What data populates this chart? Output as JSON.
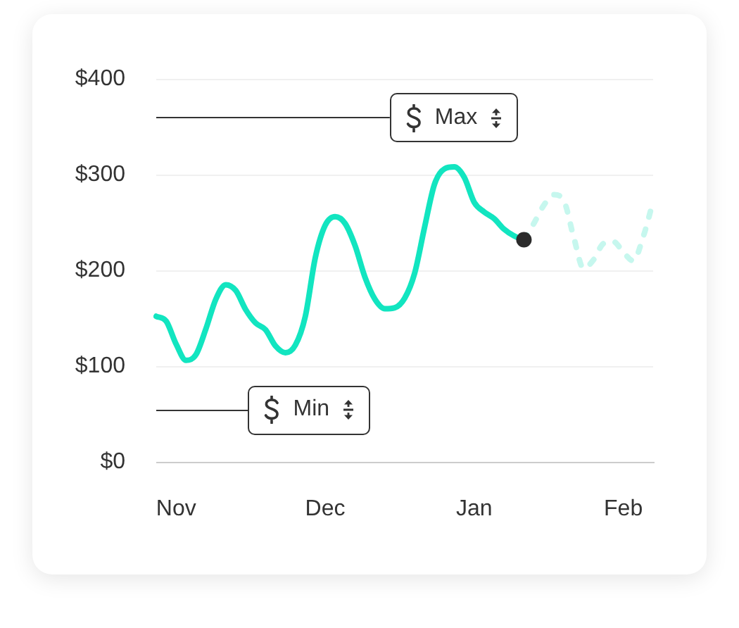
{
  "chart_data": {
    "type": "line",
    "categories": [
      null,
      null,
      "Nov",
      null,
      null,
      null,
      null,
      null,
      null,
      null,
      null,
      null,
      null,
      null,
      null,
      null,
      null,
      "Dec",
      null,
      null,
      null,
      null,
      null,
      null,
      null,
      null,
      null,
      null,
      null,
      null,
      null,
      null,
      "Jan",
      null,
      null,
      null,
      null,
      null,
      null,
      null,
      null,
      null,
      null,
      null,
      null,
      null,
      null,
      "Feb",
      null,
      null,
      null
    ],
    "ylim": [
      0,
      400
    ],
    "yticks": [
      {
        "value": 0,
        "label": "$0"
      },
      {
        "value": 100,
        "label": "$100"
      },
      {
        "value": 200,
        "label": "$200"
      },
      {
        "value": 300,
        "label": "$300"
      },
      {
        "value": 400,
        "label": "$400"
      }
    ],
    "grid": "y",
    "legend": false,
    "marker": "none",
    "line_style": "solid",
    "series": [
      {
        "color": "#12e5c0",
        "values": [
          152,
          147,
          123,
          106,
          112,
          139,
          170,
          185,
          179,
          159,
          145,
          138,
          121,
          114,
          122,
          152,
          213,
          247,
          256,
          249,
          226,
          193,
          170,
          160,
          161,
          171,
          197,
          245,
          290,
          306,
          308,
          297,
          271,
          261,
          254,
          243,
          236,
          232,
          null,
          null,
          null,
          null,
          null,
          null,
          null,
          null,
          null,
          null,
          null,
          null,
          null
        ]
      },
      {
        "color": "#c6f7ee",
        "line_style": "dashed",
        "values": [
          null,
          null,
          null,
          null,
          null,
          null,
          null,
          null,
          null,
          null,
          null,
          null,
          null,
          null,
          null,
          null,
          null,
          null,
          null,
          null,
          null,
          null,
          null,
          null,
          null,
          null,
          null,
          null,
          null,
          null,
          null,
          null,
          null,
          null,
          null,
          null,
          null,
          232,
          249,
          268,
          279,
          273,
          235,
          202,
          211,
          228,
          230,
          219,
          210,
          235,
          272
        ]
      },
      {
        "type": "scatter",
        "marker": "circle",
        "color": "#2b2b2b",
        "values": [
          null,
          null,
          null,
          null,
          null,
          null,
          null,
          null,
          null,
          null,
          null,
          null,
          null,
          null,
          null,
          null,
          null,
          null,
          null,
          null,
          null,
          null,
          null,
          null,
          null,
          null,
          null,
          null,
          null,
          null,
          null,
          null,
          null,
          null,
          null,
          null,
          null,
          232,
          null,
          null,
          null,
          null,
          null,
          null,
          null,
          null,
          null,
          null,
          null,
          null,
          null
        ]
      }
    ],
    "ref_lines": [
      {
        "axis": "y",
        "value": 360,
        "label": "Max",
        "color": "#333333"
      },
      {
        "axis": "y",
        "value": 55,
        "label": "Min",
        "color": "#333333"
      }
    ]
  }
}
